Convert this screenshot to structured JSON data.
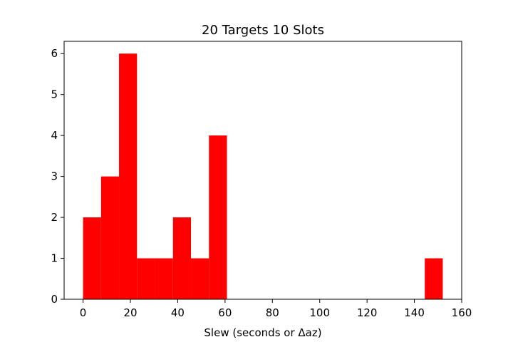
{
  "chart_data": {
    "type": "bar",
    "title": "20 Targets 10 Slots",
    "xlabel": "Slew (seconds or Δaz)",
    "ylabel": "",
    "xlim": [
      -8,
      160
    ],
    "ylim": [
      0,
      6.3
    ],
    "xticks": [
      0,
      20,
      40,
      60,
      80,
      100,
      120,
      140,
      160
    ],
    "yticks": [
      0,
      1,
      2,
      3,
      4,
      5,
      6
    ],
    "grid": false,
    "bar_color": "#ff0000",
    "bins": [
      {
        "x0": 0.0,
        "x1": 7.6,
        "count": 2
      },
      {
        "x0": 7.6,
        "x1": 15.2,
        "count": 3
      },
      {
        "x0": 15.2,
        "x1": 22.8,
        "count": 6
      },
      {
        "x0": 22.8,
        "x1": 30.4,
        "count": 1
      },
      {
        "x0": 30.4,
        "x1": 38.0,
        "count": 1
      },
      {
        "x0": 38.0,
        "x1": 45.6,
        "count": 2
      },
      {
        "x0": 45.6,
        "x1": 53.2,
        "count": 1
      },
      {
        "x0": 53.2,
        "x1": 60.8,
        "count": 4
      },
      {
        "x0": 60.8,
        "x1": 68.4,
        "count": 0
      },
      {
        "x0": 68.4,
        "x1": 76.0,
        "count": 0
      },
      {
        "x0": 76.0,
        "x1": 83.6,
        "count": 0
      },
      {
        "x0": 83.6,
        "x1": 91.2,
        "count": 0
      },
      {
        "x0": 91.2,
        "x1": 98.8,
        "count": 0
      },
      {
        "x0": 98.8,
        "x1": 106.4,
        "count": 0
      },
      {
        "x0": 106.4,
        "x1": 114.0,
        "count": 0
      },
      {
        "x0": 114.0,
        "x1": 121.6,
        "count": 0
      },
      {
        "x0": 121.6,
        "x1": 129.2,
        "count": 0
      },
      {
        "x0": 129.2,
        "x1": 136.8,
        "count": 0
      },
      {
        "x0": 136.8,
        "x1": 144.4,
        "count": 0
      },
      {
        "x0": 144.4,
        "x1": 152.0,
        "count": 1
      }
    ]
  }
}
